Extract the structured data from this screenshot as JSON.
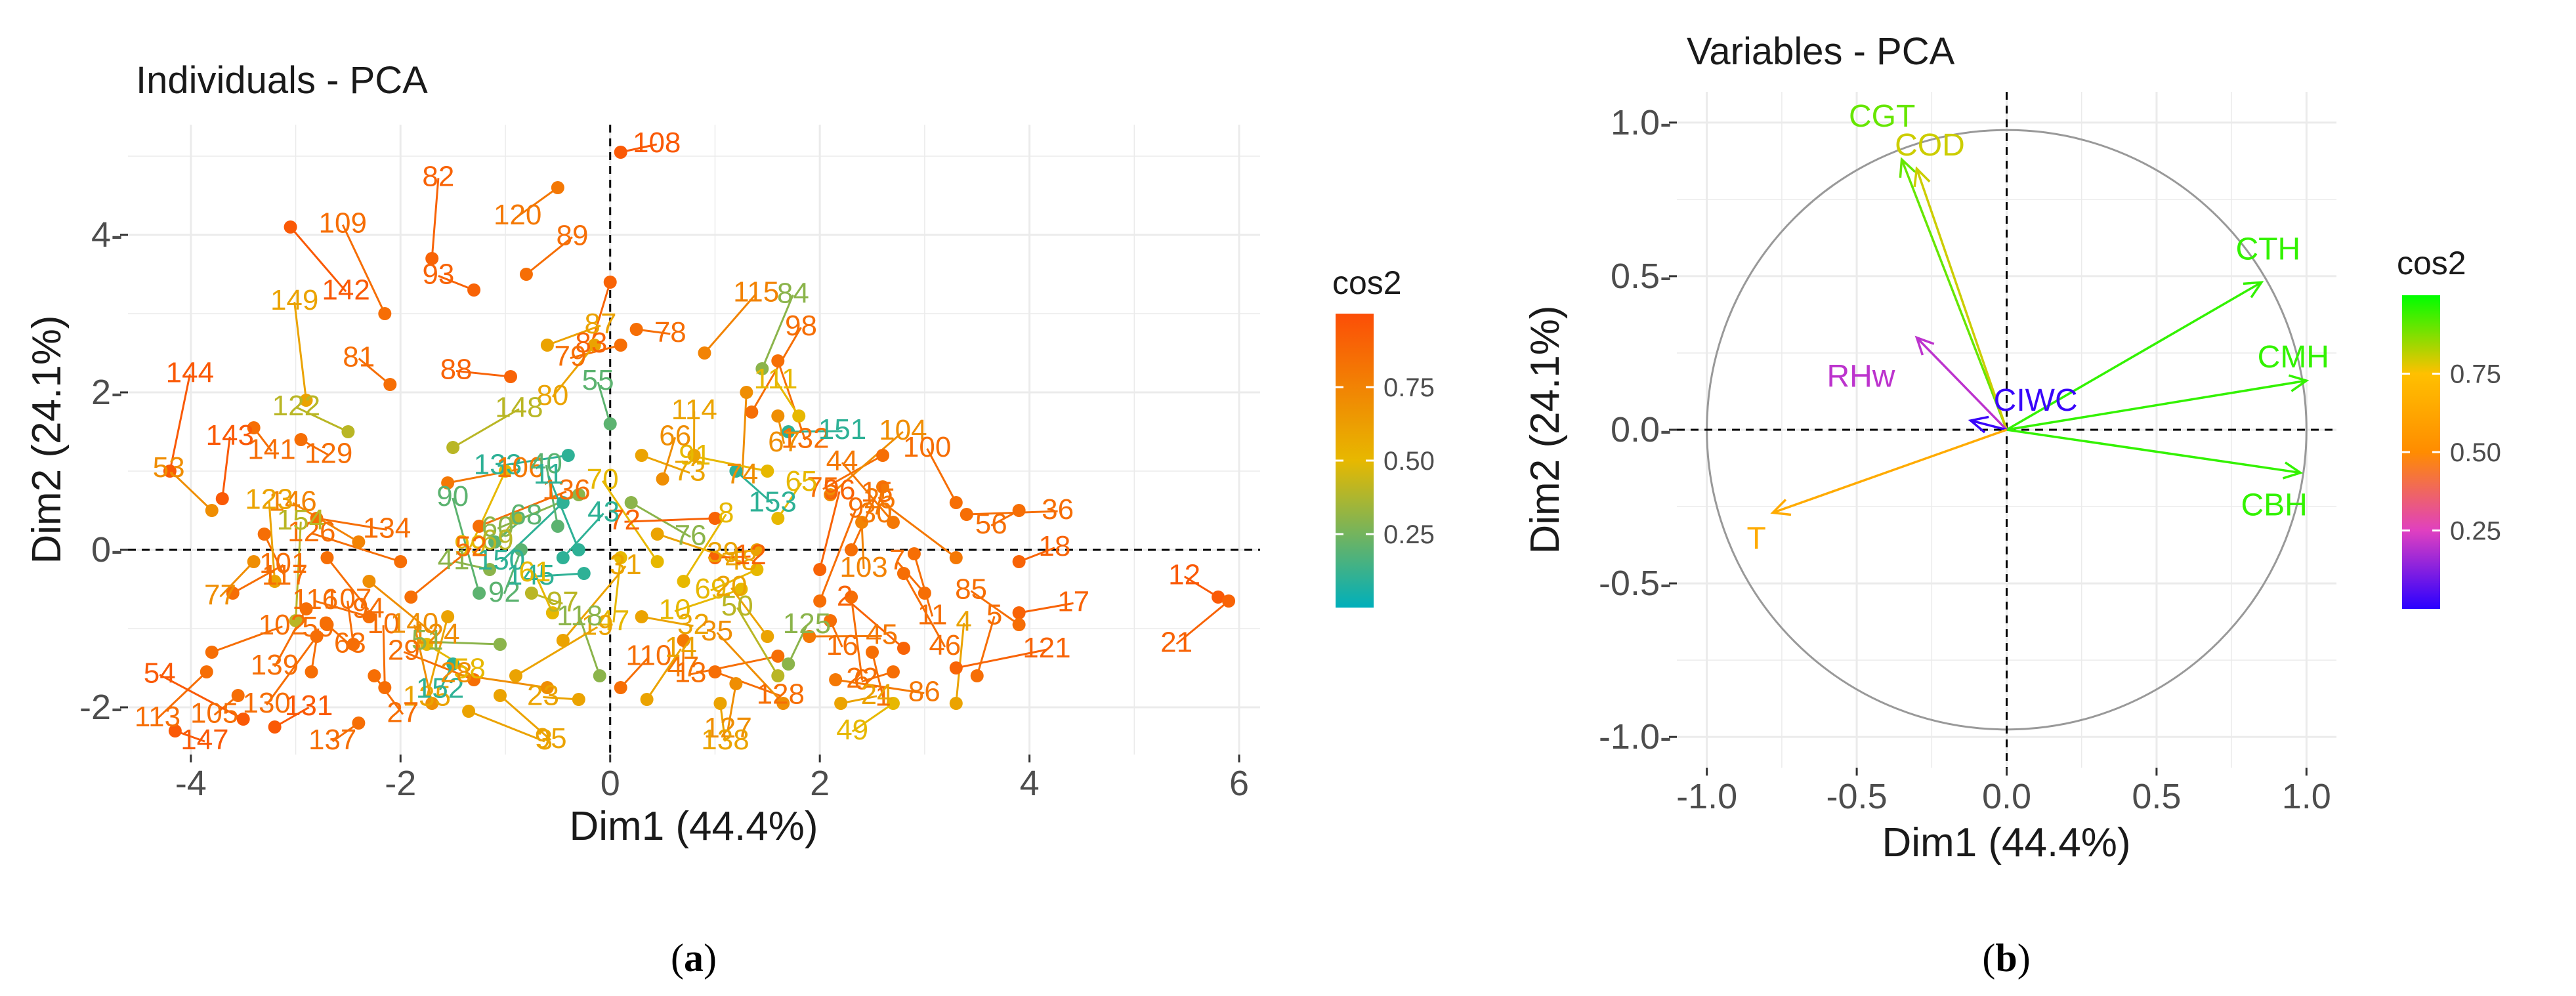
{
  "chart_data": [
    {
      "type": "scatter",
      "title": "Individuals - PCA",
      "xlabel": "Dim1 (44.4%)",
      "ylabel": "Dim2 (24.1%)",
      "xlim": [
        -4.6,
        6.2
      ],
      "ylim": [
        -2.6,
        5.4
      ],
      "xticks": [
        -4,
        -2,
        0,
        2,
        4,
        6
      ],
      "yticks": [
        -2,
        0,
        2,
        4
      ],
      "xtick_labels": [
        "-4",
        "-2",
        "0",
        "2",
        "4",
        "6"
      ],
      "ytick_labels": [
        "-2-",
        "0-",
        "2-",
        "4-"
      ],
      "grid": true,
      "legend": {
        "title": "cos2",
        "position": "right",
        "ticks": [
          "0.75",
          "0.50",
          "0.25"
        ],
        "tick_values": [
          0.75,
          0.5,
          0.25
        ],
        "colors": [
          "#00AFBB",
          "#E7B800",
          "#FC4E07"
        ]
      },
      "caption": {
        "open": "(",
        "letter": "a",
        "close": ")"
      },
      "points": [
        {
          "label": "108",
          "x": 0.1,
          "y": 5.05,
          "cos2": 0.95
        },
        {
          "label": "120",
          "x": -0.5,
          "y": 4.6,
          "cos2": 0.8
        },
        {
          "label": "82",
          "x": -1.7,
          "y": 3.7,
          "cos2": 0.9
        },
        {
          "label": "142",
          "x": -3.05,
          "y": 4.1,
          "cos2": 0.95
        },
        {
          "label": "93",
          "x": -1.3,
          "y": 3.3,
          "cos2": 0.9
        },
        {
          "label": "89",
          "x": -0.8,
          "y": 3.5,
          "cos2": 0.85
        },
        {
          "label": "83",
          "x": 0.0,
          "y": 3.4,
          "cos2": 0.9
        },
        {
          "label": "109",
          "x": -2.15,
          "y": 3.0,
          "cos2": 0.85
        },
        {
          "label": "78",
          "x": 0.25,
          "y": 2.8,
          "cos2": 0.85
        },
        {
          "label": "79",
          "x": 0.1,
          "y": 2.6,
          "cos2": 0.85
        },
        {
          "label": "84",
          "x": 1.45,
          "y": 2.3,
          "cos2": 0.3
        },
        {
          "label": "132",
          "x": 1.6,
          "y": 2.4,
          "cos2": 0.85
        },
        {
          "label": "81",
          "x": -2.1,
          "y": 2.1,
          "cos2": 0.85
        },
        {
          "label": "87",
          "x": -0.6,
          "y": 2.6,
          "cos2": 0.6
        },
        {
          "label": "80",
          "x": -0.15,
          "y": 2.6,
          "cos2": 0.6
        },
        {
          "label": "149",
          "x": -2.9,
          "y": 1.9,
          "cos2": 0.6
        },
        {
          "label": "129",
          "x": -2.95,
          "y": 1.4,
          "cos2": 0.85
        },
        {
          "label": "88",
          "x": -0.95,
          "y": 2.2,
          "cos2": 0.9
        },
        {
          "label": "115",
          "x": 0.9,
          "y": 2.5,
          "cos2": 0.75
        },
        {
          "label": "74",
          "x": 1.3,
          "y": 2.0,
          "cos2": 0.7
        },
        {
          "label": "111",
          "x": 1.8,
          "y": 1.7,
          "cos2": 0.5
        },
        {
          "label": "151",
          "x": 1.7,
          "y": 1.5,
          "cos2": 0.1
        },
        {
          "label": "75",
          "x": 2.6,
          "y": 1.2,
          "cos2": 0.85
        },
        {
          "label": "144",
          "x": -4.2,
          "y": 1.0,
          "cos2": 0.95
        },
        {
          "label": "141",
          "x": -3.4,
          "y": 1.55,
          "cos2": 0.85
        },
        {
          "label": "122",
          "x": -2.5,
          "y": 1.5,
          "cos2": 0.4
        },
        {
          "label": "148",
          "x": -1.5,
          "y": 1.3,
          "cos2": 0.4
        },
        {
          "label": "99",
          "x": -1.0,
          "y": 1.0,
          "cos2": 0.5
        },
        {
          "label": "55",
          "x": 0.0,
          "y": 1.6,
          "cos2": 0.2
        },
        {
          "label": "73",
          "x": 0.3,
          "y": 1.2,
          "cos2": 0.6
        },
        {
          "label": "133",
          "x": -0.4,
          "y": 1.2,
          "cos2": 0.1
        },
        {
          "label": "98",
          "x": 1.35,
          "y": 1.75,
          "cos2": 0.85
        },
        {
          "label": "67",
          "x": 1.6,
          "y": 1.7,
          "cos2": 0.7
        },
        {
          "label": "53",
          "x": -3.8,
          "y": 0.5,
          "cos2": 0.7
        },
        {
          "label": "106",
          "x": -1.55,
          "y": 0.85,
          "cos2": 0.8
        },
        {
          "label": "150",
          "x": -0.45,
          "y": 0.6,
          "cos2": 0.1
        },
        {
          "label": "114",
          "x": 0.8,
          "y": 1.2,
          "cos2": 0.6
        },
        {
          "label": "153",
          "x": 1.2,
          "y": 1.0,
          "cos2": 0.1
        },
        {
          "label": "91",
          "x": 1.5,
          "y": 1.0,
          "cos2": 0.5
        },
        {
          "label": "104",
          "x": 2.1,
          "y": 0.7,
          "cos2": 0.7
        },
        {
          "label": "30",
          "x": 2.6,
          "y": 0.8,
          "cos2": 0.8
        },
        {
          "label": "100",
          "x": 3.3,
          "y": 0.6,
          "cos2": 0.85
        },
        {
          "label": "134",
          "x": -2.8,
          "y": 0.4,
          "cos2": 0.85
        },
        {
          "label": "60",
          "x": -0.3,
          "y": 0.7,
          "cos2": 0.3
        },
        {
          "label": "66",
          "x": 0.5,
          "y": 0.9,
          "cos2": 0.7
        },
        {
          "label": "117",
          "x": -3.3,
          "y": 0.2,
          "cos2": 0.85
        },
        {
          "label": "146",
          "x": -2.4,
          "y": 0.1,
          "cos2": 0.75
        },
        {
          "label": "136",
          "x": -1.25,
          "y": 0.3,
          "cos2": 0.85
        },
        {
          "label": "69",
          "x": -0.9,
          "y": 0.4,
          "cos2": 0.4
        },
        {
          "label": "40",
          "x": -0.5,
          "y": 0.3,
          "cos2": 0.2
        },
        {
          "label": "76",
          "x": 0.2,
          "y": 0.6,
          "cos2": 0.3
        },
        {
          "label": "72",
          "x": 1.0,
          "y": 0.4,
          "cos2": 0.9
        },
        {
          "label": "65",
          "x": 1.6,
          "y": 0.4,
          "cos2": 0.5
        },
        {
          "label": "103",
          "x": 2.4,
          "y": 0.35,
          "cos2": 0.75
        },
        {
          "label": "44",
          "x": 2.7,
          "y": 0.35,
          "cos2": 0.8
        },
        {
          "label": "36",
          "x": 3.4,
          "y": 0.45,
          "cos2": 0.85
        },
        {
          "label": "56",
          "x": 3.9,
          "y": 0.5,
          "cos2": 0.85
        },
        {
          "label": "143",
          "x": -3.7,
          "y": 0.65,
          "cos2": 0.95
        },
        {
          "label": "94",
          "x": -2.7,
          "y": -0.1,
          "cos2": 0.85
        },
        {
          "label": "126",
          "x": -2.0,
          "y": -0.15,
          "cos2": 0.85
        },
        {
          "label": "68",
          "x": -1.1,
          "y": 0.1,
          "cos2": 0.2
        },
        {
          "label": "92",
          "x": -0.85,
          "y": 0.0,
          "cos2": 0.2
        },
        {
          "label": "11",
          "x": -0.3,
          "y": 0.0,
          "cos2": 0.1
        },
        {
          "label": "48",
          "x": 0.45,
          "y": 0.2,
          "cos2": 0.6
        },
        {
          "label": "39",
          "x": 1.4,
          "y": 0.0,
          "cos2": 0.6
        },
        {
          "label": "15",
          "x": 2.3,
          "y": 0.0,
          "cos2": 0.85
        },
        {
          "label": "11",
          "x": 2.9,
          "y": -0.05,
          "cos2": 0.85
        },
        {
          "label": "25",
          "x": 3.3,
          "y": -0.1,
          "cos2": 0.8
        },
        {
          "label": "18",
          "x": 3.9,
          "y": -0.15,
          "cos2": 0.9
        },
        {
          "label": "77",
          "x": -3.4,
          "y": -0.15,
          "cos2": 0.7
        },
        {
          "label": "123",
          "x": -3.2,
          "y": -0.4,
          "cos2": 0.6
        },
        {
          "label": "124",
          "x": -2.3,
          "y": -0.4,
          "cos2": 0.7
        },
        {
          "label": "41",
          "x": -1.15,
          "y": -0.25,
          "cos2": 0.3
        },
        {
          "label": "43",
          "x": -0.45,
          "y": -0.1,
          "cos2": 0.1
        },
        {
          "label": "47",
          "x": 0.1,
          "y": -0.1,
          "cos2": 0.5
        },
        {
          "label": "70",
          "x": 0.45,
          "y": -0.15,
          "cos2": 0.5
        },
        {
          "label": "12",
          "x": 1.0,
          "y": -0.1,
          "cos2": 0.9
        },
        {
          "label": "69",
          "x": 1.4,
          "y": -0.25,
          "cos2": 0.5
        },
        {
          "label": "96",
          "x": 2.0,
          "y": -0.25,
          "cos2": 0.9
        },
        {
          "label": "46",
          "x": 2.8,
          "y": -0.3,
          "cos2": 0.85
        },
        {
          "label": "12",
          "x": 5.8,
          "y": -0.6,
          "cos2": 0.95
        },
        {
          "label": "101",
          "x": -3.6,
          "y": -0.55,
          "cos2": 0.85
        },
        {
          "label": "139",
          "x": -2.9,
          "y": -0.75,
          "cos2": 0.85
        },
        {
          "label": "90",
          "x": -1.25,
          "y": -0.55,
          "cos2": 0.2
        },
        {
          "label": "97",
          "x": -0.75,
          "y": -0.55,
          "cos2": 0.4
        },
        {
          "label": "145",
          "x": -0.25,
          "y": -0.3,
          "cos2": 0.1
        },
        {
          "label": "8",
          "x": 0.7,
          "y": -0.4,
          "cos2": 0.5
        },
        {
          "label": "22",
          "x": 2.3,
          "y": -0.6,
          "cos2": 0.85
        },
        {
          "label": "7",
          "x": 3.0,
          "y": -0.55,
          "cos2": 0.85
        },
        {
          "label": "17",
          "x": 3.9,
          "y": -0.8,
          "cos2": 0.9
        },
        {
          "label": "21",
          "x": 5.9,
          "y": -0.65,
          "cos2": 0.9
        },
        {
          "label": "154",
          "x": -3.0,
          "y": -0.9,
          "cos2": 0.4
        },
        {
          "label": "63",
          "x": -2.7,
          "y": -0.95,
          "cos2": 0.85
        },
        {
          "label": "116",
          "x": -2.3,
          "y": -0.85,
          "cos2": 0.85
        },
        {
          "label": "52",
          "x": -1.9,
          "y": -0.6,
          "cos2": 0.85
        },
        {
          "label": "135",
          "x": -1.55,
          "y": -0.85,
          "cos2": 0.6
        },
        {
          "label": "61",
          "x": -0.55,
          "y": -0.8,
          "cos2": 0.5
        },
        {
          "label": "32",
          "x": 0.3,
          "y": -0.85,
          "cos2": 0.6
        },
        {
          "label": "10",
          "x": 1.25,
          "y": -0.5,
          "cos2": 0.5
        },
        {
          "label": "9",
          "x": 2.0,
          "y": -0.65,
          "cos2": 0.85
        },
        {
          "label": "16",
          "x": 2.1,
          "y": -0.9,
          "cos2": 0.85
        },
        {
          "label": "85",
          "x": 3.9,
          "y": -0.95,
          "cos2": 0.85
        },
        {
          "label": "102",
          "x": -3.8,
          "y": -1.3,
          "cos2": 0.85
        },
        {
          "label": "130",
          "x": -2.8,
          "y": -1.1,
          "cos2": 0.85
        },
        {
          "label": "107",
          "x": -2.45,
          "y": -1.2,
          "cos2": 0.85
        },
        {
          "label": "58",
          "x": -1.75,
          "y": -1.2,
          "cos2": 0.5
        },
        {
          "label": "51",
          "x": -1.05,
          "y": -1.2,
          "cos2": 0.3
        },
        {
          "label": "31",
          "x": -0.45,
          "y": -1.15,
          "cos2": 0.6
        },
        {
          "label": "47",
          "x": 0.7,
          "y": -1.15,
          "cos2": 0.8
        },
        {
          "label": "20",
          "x": 1.5,
          "y": -1.1,
          "cos2": 0.6
        },
        {
          "label": "45",
          "x": 1.9,
          "y": -1.1,
          "cos2": 0.8
        },
        {
          "label": "113",
          "x": -3.85,
          "y": -1.55,
          "cos2": 0.85
        },
        {
          "label": "59",
          "x": -2.85,
          "y": -1.55,
          "cos2": 0.85
        },
        {
          "label": "27",
          "x": -2.25,
          "y": -1.6,
          "cos2": 0.85
        },
        {
          "label": "29",
          "x": -1.3,
          "y": -1.65,
          "cos2": 0.85
        },
        {
          "label": "19",
          "x": -0.9,
          "y": -1.6,
          "cos2": 0.6
        },
        {
          "label": "152",
          "x": -1.5,
          "y": -1.45,
          "cos2": 0.1
        },
        {
          "label": "118",
          "x": -0.1,
          "y": -1.6,
          "cos2": 0.3
        },
        {
          "label": "128",
          "x": 1.0,
          "y": -1.55,
          "cos2": 0.85
        },
        {
          "label": "13",
          "x": 1.6,
          "y": -1.35,
          "cos2": 0.85
        },
        {
          "label": "125",
          "x": 1.7,
          "y": -1.45,
          "cos2": 0.3
        },
        {
          "label": "1",
          "x": 2.5,
          "y": -1.3,
          "cos2": 0.85
        },
        {
          "label": "2",
          "x": 2.8,
          "y": -1.25,
          "cos2": 0.9
        },
        {
          "label": "121",
          "x": 3.3,
          "y": -1.5,
          "cos2": 0.9
        },
        {
          "label": "105",
          "x": -3.55,
          "y": -1.85,
          "cos2": 0.85
        },
        {
          "label": "10",
          "x": -2.15,
          "y": -1.75,
          "cos2": 0.85
        },
        {
          "label": "95",
          "x": -1.05,
          "y": -1.85,
          "cos2": 0.6
        },
        {
          "label": "28",
          "x": -0.6,
          "y": -1.75,
          "cos2": 0.7
        },
        {
          "label": "110",
          "x": 0.1,
          "y": -1.75,
          "cos2": 0.85
        },
        {
          "label": "127",
          "x": 1.2,
          "y": -1.7,
          "cos2": 0.7
        },
        {
          "label": "50",
          "x": 1.6,
          "y": -1.6,
          "cos2": 0.4
        },
        {
          "label": "86",
          "x": 2.15,
          "y": -1.65,
          "cos2": 0.8
        },
        {
          "label": "6",
          "x": 2.7,
          "y": -1.55,
          "cos2": 0.85
        },
        {
          "label": "5",
          "x": 3.5,
          "y": -1.6,
          "cos2": 0.85
        },
        {
          "label": "147",
          "x": -4.15,
          "y": -2.3,
          "cos2": 0.95
        },
        {
          "label": "54",
          "x": -3.5,
          "y": -2.15,
          "cos2": 0.95
        },
        {
          "label": "131",
          "x": -3.2,
          "y": -2.25,
          "cos2": 0.95
        },
        {
          "label": "137",
          "x": -2.4,
          "y": -2.2,
          "cos2": 0.85
        },
        {
          "label": "140",
          "x": -1.7,
          "y": -1.95,
          "cos2": 0.7
        },
        {
          "label": "3",
          "x": -1.35,
          "y": -2.05,
          "cos2": 0.6
        },
        {
          "label": "23",
          "x": -0.3,
          "y": -1.9,
          "cos2": 0.6
        },
        {
          "label": "14",
          "x": 0.35,
          "y": -1.9,
          "cos2": 0.6
        },
        {
          "label": "138",
          "x": 1.05,
          "y": -1.95,
          "cos2": 0.6
        },
        {
          "label": "35",
          "x": 1.65,
          "y": -1.95,
          "cos2": 0.7
        },
        {
          "label": "24",
          "x": 2.2,
          "y": -1.95,
          "cos2": 0.6
        },
        {
          "label": "49",
          "x": 2.7,
          "y": -1.95,
          "cos2": 0.5
        },
        {
          "label": "4",
          "x": 3.3,
          "y": -1.95,
          "cos2": 0.6
        }
      ]
    },
    {
      "type": "scatter",
      "title": "Variables - PCA",
      "xlabel": "Dim1 (44.4%)",
      "ylabel": "Dim2 (24.1%)",
      "xlim": [
        -1.1,
        1.1
      ],
      "ylim": [
        -1.1,
        1.1
      ],
      "xticks": [
        -1.0,
        -0.5,
        0.0,
        0.5,
        1.0
      ],
      "yticks": [
        -1.0,
        -0.5,
        0.0,
        0.5,
        1.0
      ],
      "xtick_labels": [
        "-1.0",
        "-0.5",
        "0.0",
        "0.5",
        "1.0"
      ],
      "ytick_labels": [
        "-1.0-",
        "-0.5-",
        "0.0-",
        "0.5-",
        "1.0-"
      ],
      "grid": true,
      "legend": {
        "title": "cos2",
        "position": "right",
        "ticks": [
          "0.75",
          "0.50",
          "0.25"
        ],
        "tick_values": [
          0.75,
          0.5,
          0.25
        ],
        "colors": [
          "#2A00FF",
          "#E040C0",
          "#FF8C00",
          "#FFC000",
          "#00FF00"
        ]
      },
      "caption": {
        "open": "(",
        "letter": "b",
        "close": ")"
      },
      "vectors": [
        {
          "name": "CGT",
          "x": -0.35,
          "y": 0.88,
          "cos2": 0.9
        },
        {
          "name": "COD",
          "x": -0.3,
          "y": 0.85,
          "cos2": 0.8
        },
        {
          "name": "CTH",
          "x": 0.85,
          "y": 0.48,
          "cos2": 0.95
        },
        {
          "name": "CMH",
          "x": 1.0,
          "y": 0.16,
          "cos2": 0.95
        },
        {
          "name": "CBH",
          "x": 0.98,
          "y": -0.14,
          "cos2": 0.95
        },
        {
          "name": "RHw",
          "x": -0.3,
          "y": 0.3,
          "cos2": 0.2
        },
        {
          "name": "CIWC",
          "x": -0.12,
          "y": 0.03,
          "cos2": 0.02
        },
        {
          "name": "T",
          "x": -0.78,
          "y": -0.27,
          "cos2": 0.65
        }
      ]
    }
  ]
}
